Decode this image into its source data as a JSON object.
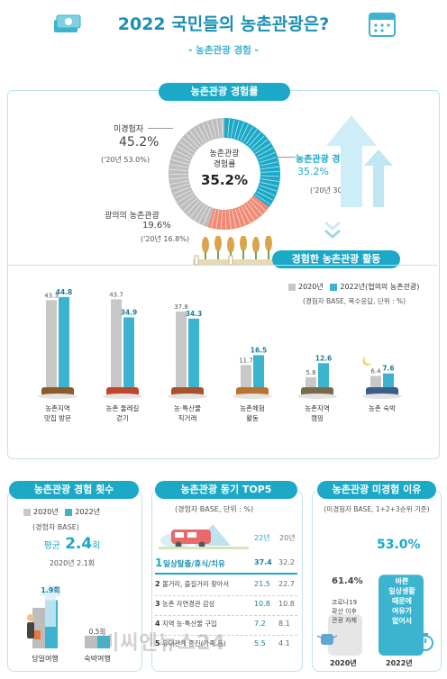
{
  "header": {
    "title": "2022 국민들의 농촌관광은?",
    "subtitle": "- 농촌관광 경험 -"
  },
  "experience_rate": {
    "pill": "농촌관광 경험률",
    "center_label_1": "농촌관광",
    "center_label_2": "경험률",
    "center_value": "35.2%",
    "never": {
      "label": "미경험자",
      "value": "45.2%",
      "prev": "('20년 53.0%)"
    },
    "experienced": {
      "label": "농촌관광 경험",
      "value": "35.2%",
      "prev": "('20년 30.2%)"
    },
    "broad": {
      "label": "광의의 농촌관광",
      "value": "19.6%",
      "prev": "('20년 16.8%)"
    }
  },
  "activities": {
    "pill": "경험한 농촌관광 활동",
    "legend_2020": "2020년",
    "legend_2022": "2022년(협의의 농촌관광)",
    "note": "(경험자 BASE, 복수응답, 단위 : %)"
  },
  "frequency": {
    "pill": "농촌관광 경험 횟수",
    "legend_2020": "2020년",
    "legend_2022": "2022년",
    "base": "(경험자 BASE)",
    "avg_label": "평균",
    "avg_value": "2.4",
    "avg_unit": "회",
    "prev": "2020년  2.1회",
    "day_value": "1.9회",
    "stay_value": "0.5회",
    "day_label": "당일여행",
    "stay_label": "숙박여행"
  },
  "motives": {
    "pill": "농촌관광 동기 TOP5",
    "base": "(경험자 BASE, 단위 : %)",
    "col_22": "22년",
    "col_20": "20년",
    "rows": [
      {
        "rank": "1",
        "label": "일상탈출/휴식/치유",
        "v22": "37.4",
        "v20": "32.2"
      },
      {
        "rank": "2",
        "label": "볼거리, 즐길거리 찾아서",
        "v22": "21.5",
        "v20": "22.7"
      },
      {
        "rank": "3",
        "label": "농촌 자연경관 감상",
        "v22": "10.8",
        "v20": "10.8"
      },
      {
        "rank": "4",
        "label": "지역 농·특산물 구입",
        "v22": "7.2",
        "v20": "8.1"
      },
      {
        "rank": "5",
        "label": "유대관계 증진(가족 등)",
        "v22": "5.5",
        "v20": "4.1"
      }
    ]
  },
  "non_experience": {
    "pill": "농촌관광 미경험 이유",
    "base": "(미경험자 BASE, 1+2+3순위 기준)",
    "year_2020": "2020년",
    "year_2022": "2022년",
    "value_2020": "61.4%",
    "value_2022": "53.0%",
    "reason_2020": [
      "코로나19",
      "확산 이후",
      "관광 자제"
    ],
    "reason_2022": [
      "바쁜",
      "일상생활",
      "때문에",
      "여유가",
      "없어서"
    ]
  },
  "watermark": "비씨엔뉴스24",
  "chart_data": [
    {
      "type": "pie",
      "labels": [
        "농촌관광 경험",
        "광의의 농촌관광",
        "미경험자"
      ],
      "values": [
        35.2,
        19.6,
        45.2
      ],
      "prev_2020": [
        30.2,
        16.8,
        53.0
      ],
      "title": "농촌관광 경험률",
      "colors": [
        "#1ba9c7",
        "#f08a74",
        "#bdbdbd"
      ]
    },
    {
      "type": "bar",
      "title": "경험한 농촌관광 활동",
      "categories": [
        "농촌지역 맛집 방문",
        "농촌 둘레길 걷기",
        "농·특산물 직거래",
        "농촌체험 활동",
        "농촌지역 캠핑",
        "농촌 숙박"
      ],
      "series": [
        {
          "name": "2020년",
          "values": [
            43.3,
            43.7,
            37.8,
            11.7,
            5.8,
            6.4
          ]
        },
        {
          "name": "2022년(협의의 농촌관광)",
          "values": [
            44.8,
            34.9,
            34.3,
            16.5,
            12.6,
            7.6
          ]
        }
      ],
      "ylim": [
        0,
        50
      ],
      "colors": [
        "#c8c8c8",
        "#3cb4cf"
      ]
    },
    {
      "type": "bar",
      "title": "농촌관광 경험 횟수",
      "categories": [
        "당일여행",
        "숙박여행"
      ],
      "series": [
        {
          "name": "2020년",
          "values": [
            1.6,
            0.5
          ]
        },
        {
          "name": "2022년",
          "values": [
            1.9,
            0.5
          ]
        }
      ],
      "ylim": [
        0,
        2.2
      ]
    },
    {
      "type": "table",
      "title": "농촌관광 동기 TOP5",
      "columns": [
        "22년",
        "20년"
      ],
      "rows": [
        "일상탈출/휴식/치유",
        "볼거리, 즐길거리 찾아서",
        "농촌 자연경관 감상",
        "지역 농·특산물 구입",
        "유대관계 증진(가족 등)"
      ],
      "values": [
        [
          37.4,
          32.2
        ],
        [
          21.5,
          22.7
        ],
        [
          10.8,
          10.8
        ],
        [
          7.2,
          8.1
        ],
        [
          5.5,
          4.1
        ]
      ]
    },
    {
      "type": "bar",
      "title": "농촌관광 미경험 이유",
      "categories": [
        "2020년",
        "2022년"
      ],
      "values": [
        61.4,
        53.0
      ]
    }
  ]
}
